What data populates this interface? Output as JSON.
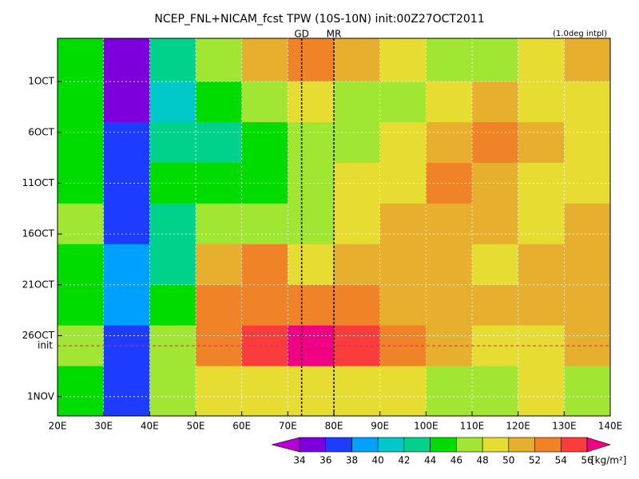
{
  "chart_data": {
    "type": "heatmap",
    "title": "NCEP_FNL+NICAM_fcst TPW (10S-10N) init:00Z27OCT2011",
    "note": "(1.0deg intpl)",
    "units": "[kg/m²]",
    "xlim": [
      20,
      140
    ],
    "xticks": [
      {
        "value": 20,
        "label": "20E"
      },
      {
        "value": 30,
        "label": "30E"
      },
      {
        "value": 40,
        "label": "40E"
      },
      {
        "value": 50,
        "label": "50E"
      },
      {
        "value": 60,
        "label": "60E"
      },
      {
        "value": 70,
        "label": "70E"
      },
      {
        "value": 80,
        "label": "80E"
      },
      {
        "value": 90,
        "label": "90E"
      },
      {
        "value": 100,
        "label": "100E"
      },
      {
        "value": 110,
        "label": "110E"
      },
      {
        "value": 120,
        "label": "120E"
      },
      {
        "value": 130,
        "label": "130E"
      },
      {
        "value": 140,
        "label": "140E"
      }
    ],
    "ylim": [
      -4.25,
      32.9
    ],
    "yticks": [
      {
        "value": 0,
        "label": "1OCT"
      },
      {
        "value": 5,
        "label": "6OCT"
      },
      {
        "value": 10,
        "label": "11OCT"
      },
      {
        "value": 15,
        "label": "16OCT"
      },
      {
        "value": 20,
        "label": "21OCT"
      },
      {
        "value": 25,
        "label": "26OCT"
      },
      {
        "value": 31,
        "label": "1NOV"
      }
    ],
    "grid": true,
    "xbins": [
      20,
      30,
      40,
      50,
      60,
      70,
      80,
      90,
      100,
      110,
      120,
      130,
      140
    ],
    "ybins": [
      -4.25,
      0,
      4,
      8,
      12,
      16,
      20,
      24,
      28,
      32.9
    ],
    "z": [
      [
        44,
        35,
        42,
        46,
        50,
        52,
        50,
        48,
        46,
        46,
        48,
        50
      ],
      [
        44,
        35,
        40,
        44,
        46,
        48,
        46,
        46,
        48,
        50,
        48,
        48
      ],
      [
        44,
        36,
        42,
        42,
        44,
        46,
        46,
        48,
        50,
        52,
        50,
        48
      ],
      [
        44,
        36,
        44,
        44,
        44,
        46,
        48,
        48,
        52,
        50,
        48,
        48
      ],
      [
        46,
        37,
        42,
        46,
        46,
        46,
        48,
        50,
        50,
        50,
        48,
        50
      ],
      [
        44,
        38,
        42,
        50,
        52,
        48,
        50,
        50,
        50,
        48,
        50,
        50
      ],
      [
        44,
        38,
        44,
        52,
        52,
        52,
        52,
        50,
        50,
        50,
        50,
        50
      ],
      [
        46,
        37,
        46,
        52,
        54,
        56,
        54,
        52,
        50,
        48,
        48,
        50
      ],
      [
        44,
        36,
        46,
        48,
        48,
        48,
        48,
        48,
        46,
        46,
        48,
        46
      ]
    ],
    "levels": [
      34,
      36,
      38,
      40,
      42,
      44,
      46,
      48,
      50,
      52,
      54,
      56
    ],
    "colors": [
      "#b400d2",
      "#7d00dc",
      "#1e3cff",
      "#00a0ff",
      "#00c8c8",
      "#00d28c",
      "#00dc00",
      "#a0e632",
      "#e6dc32",
      "#e6af2d",
      "#f08228",
      "#fa3c3c",
      "#f00082"
    ],
    "markers": [
      {
        "label": "GD",
        "x": 73,
        "color": "#e00000"
      },
      {
        "label": "MR",
        "x": 80,
        "color": "#e00000"
      }
    ],
    "init_line": {
      "label": "init",
      "y": 26,
      "color": "#e0207a"
    }
  }
}
